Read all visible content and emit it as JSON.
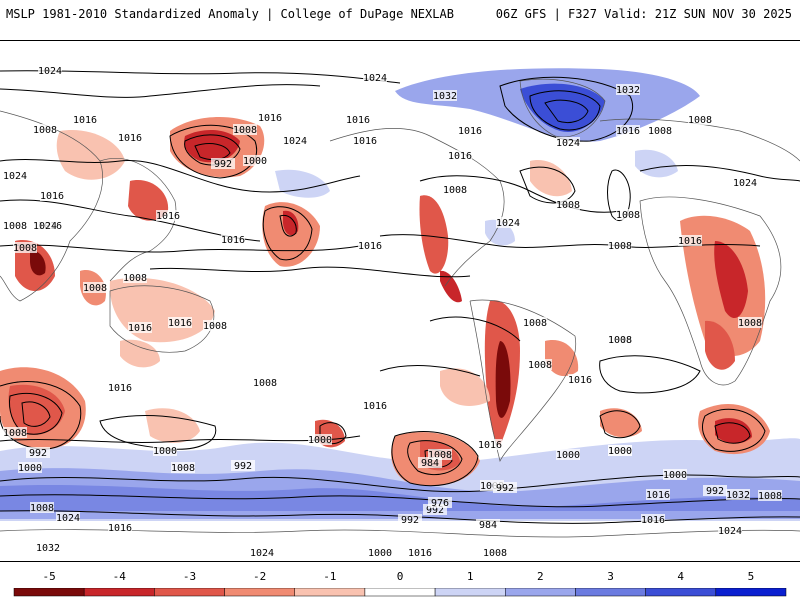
{
  "header": {
    "left_title": "MSLP 1981-2010 Standardized Anomaly | College of DuPage NEXLAB",
    "right_title": "06Z GFS | F327 Valid: 21Z SUN NOV 30 2025"
  },
  "map": {
    "projection": "global cylindrical (Pacific-centered)",
    "isobar_labels": [
      "1024",
      "1024",
      "1032",
      "1032",
      "1016",
      "1016",
      "1008",
      "1016",
      "1024",
      "1016",
      "1008",
      "1016",
      "1016",
      "1016",
      "1000",
      "992",
      "1024",
      "1016",
      "1024",
      "1008",
      "1008",
      "1024",
      "1016",
      "1016",
      "1016",
      "1016",
      "1008",
      "1016",
      "1008",
      "1008",
      "1008",
      "1008",
      "1008",
      "1024",
      "1016",
      "1008",
      "1024",
      "1016",
      "1016",
      "1008",
      "1008",
      "1008",
      "1008",
      "1008",
      "1016",
      "1016",
      "1008",
      "1008",
      "1016",
      "1000",
      "1000",
      "1016",
      "1008",
      "992",
      "1000",
      "1008",
      "992",
      "984",
      "992",
      "1008",
      "992",
      "976",
      "984",
      "992",
      "1000",
      "1000",
      "1000",
      "1016",
      "1032",
      "1024",
      "1008",
      "1016",
      "1024",
      "1016",
      "1008",
      "1008",
      "1016",
      "1032",
      "1024",
      "1016",
      "1008",
      "992",
      "1000",
      "1000"
    ]
  },
  "colors": {
    "neg5": "#7a0a0a",
    "neg4": "#c8262a",
    "neg3": "#e0574a",
    "neg2": "#f08b72",
    "neg1": "#f9c2b0",
    "zero": "#ffffff",
    "pos1": "#cdd4f5",
    "pos2": "#9aa6ec",
    "pos3": "#6b7be0",
    "pos4": "#3b4ed6",
    "pos5": "#0a1fd0"
  },
  "colorbar": {
    "ticks": [
      "-5",
      "-4",
      "-3",
      "-2",
      "-1",
      "0",
      "1",
      "2",
      "3",
      "4",
      "5"
    ]
  }
}
